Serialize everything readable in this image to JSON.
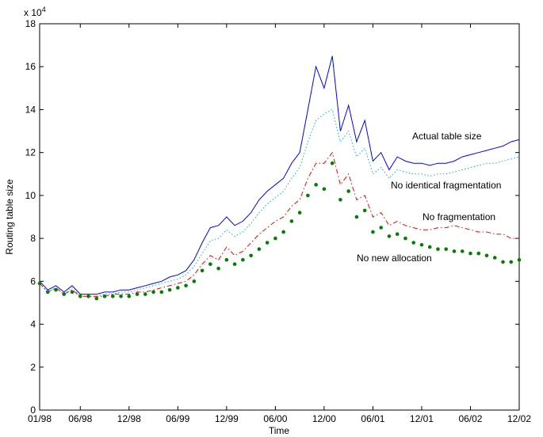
{
  "chart_data": {
    "type": "line",
    "x_label": "Time",
    "y_label": "Routing table size",
    "y_multiplier": {
      "base": "x 10",
      "exponent": "4"
    },
    "xlim": [
      0,
      59
    ],
    "xticks": [
      {
        "value": 0,
        "label": "01/98"
      },
      {
        "value": 5,
        "label": "06/98"
      },
      {
        "value": 11,
        "label": "12/98"
      },
      {
        "value": 17,
        "label": "06/99"
      },
      {
        "value": 23,
        "label": "12/99"
      },
      {
        "value": 29,
        "label": "06/00"
      },
      {
        "value": 35,
        "label": "12/00"
      },
      {
        "value": 41,
        "label": "06/01"
      },
      {
        "value": 47,
        "label": "12/01"
      },
      {
        "value": 53,
        "label": "06/02"
      },
      {
        "value": 59,
        "label": "12/02"
      }
    ],
    "ylim": [
      0,
      18
    ],
    "yticks": [
      0,
      2,
      4,
      6,
      8,
      10,
      12,
      14,
      16,
      18
    ],
    "grid": false,
    "x": [
      0,
      1,
      2,
      3,
      4,
      5,
      6,
      7,
      8,
      9,
      10,
      11,
      12,
      13,
      14,
      15,
      16,
      17,
      18,
      19,
      20,
      21,
      22,
      23,
      24,
      25,
      26,
      27,
      28,
      29,
      30,
      31,
      32,
      33,
      34,
      35,
      36,
      37,
      38,
      39,
      40,
      41,
      42,
      43,
      44,
      45,
      46,
      47,
      48,
      49,
      50,
      51,
      52,
      53,
      54,
      55,
      56,
      57,
      58,
      59
    ],
    "series": [
      {
        "name": "Actual table size",
        "color": "#0000ff",
        "style": "solid",
        "values": [
          6.0,
          5.6,
          5.8,
          5.5,
          5.8,
          5.4,
          5.4,
          5.4,
          5.5,
          5.5,
          5.6,
          5.6,
          5.7,
          5.8,
          5.9,
          6.0,
          6.2,
          6.3,
          6.5,
          7.0,
          7.8,
          8.5,
          8.6,
          9.0,
          8.6,
          8.8,
          9.2,
          9.8,
          10.2,
          10.5,
          10.8,
          11.5,
          12.0,
          14.0,
          16.0,
          15.0,
          16.5,
          13.0,
          14.2,
          12.5,
          13.5,
          11.6,
          12.0,
          11.2,
          11.8,
          11.6,
          11.5,
          11.5,
          11.4,
          11.5,
          11.5,
          11.6,
          11.8,
          11.9,
          12.0,
          12.1,
          12.2,
          12.3,
          12.5,
          12.6
        ]
      },
      {
        "name": "No identical fragmentation",
        "color": "#00bfbf",
        "style": "dotted",
        "values": [
          5.9,
          5.5,
          5.7,
          5.4,
          5.7,
          5.3,
          5.3,
          5.3,
          5.4,
          5.4,
          5.5,
          5.5,
          5.6,
          5.7,
          5.8,
          5.9,
          6.0,
          6.1,
          6.3,
          6.7,
          7.3,
          7.9,
          8.0,
          8.4,
          8.1,
          8.3,
          8.7,
          9.2,
          9.6,
          9.9,
          10.2,
          10.8,
          11.3,
          12.5,
          13.5,
          13.8,
          14.0,
          12.5,
          13.0,
          11.8,
          12.2,
          11.0,
          11.3,
          10.8,
          11.2,
          11.1,
          11.0,
          11.0,
          10.9,
          11.0,
          11.0,
          11.1,
          11.2,
          11.3,
          11.4,
          11.5,
          11.5,
          11.6,
          11.7,
          11.8
        ]
      },
      {
        "name": "No fragmentation",
        "color": "#ff0000",
        "style": "dashdot",
        "values": [
          5.9,
          5.5,
          5.7,
          5.4,
          5.6,
          5.3,
          5.3,
          5.3,
          5.3,
          5.4,
          5.4,
          5.4,
          5.5,
          5.5,
          5.6,
          5.7,
          5.8,
          5.9,
          6.0,
          6.3,
          6.8,
          7.2,
          7.0,
          7.6,
          7.2,
          7.4,
          7.8,
          8.2,
          8.5,
          8.8,
          9.0,
          9.5,
          9.8,
          10.8,
          11.5,
          11.5,
          12.0,
          10.5,
          11.0,
          9.8,
          10.0,
          9.0,
          9.2,
          8.6,
          8.8,
          8.6,
          8.5,
          8.4,
          8.4,
          8.5,
          8.5,
          8.6,
          8.5,
          8.4,
          8.3,
          8.3,
          8.2,
          8.2,
          8.0,
          8.0
        ]
      },
      {
        "name": "No new allocation",
        "color": "#008000",
        "style": "markers",
        "values": [
          5.9,
          5.5,
          5.6,
          5.4,
          5.5,
          5.3,
          5.3,
          5.2,
          5.3,
          5.3,
          5.3,
          5.3,
          5.4,
          5.4,
          5.5,
          5.5,
          5.6,
          5.7,
          5.8,
          6.0,
          6.5,
          6.8,
          6.6,
          7.0,
          6.8,
          7.0,
          7.2,
          7.5,
          7.8,
          8.0,
          8.3,
          8.8,
          9.2,
          10.0,
          10.5,
          10.3,
          11.5,
          9.8,
          10.2,
          9.0,
          9.3,
          8.3,
          8.5,
          8.1,
          8.2,
          8.0,
          7.8,
          7.7,
          7.6,
          7.5,
          7.5,
          7.4,
          7.4,
          7.3,
          7.3,
          7.2,
          7.1,
          6.9,
          6.9,
          7.0
        ]
      }
    ]
  }
}
